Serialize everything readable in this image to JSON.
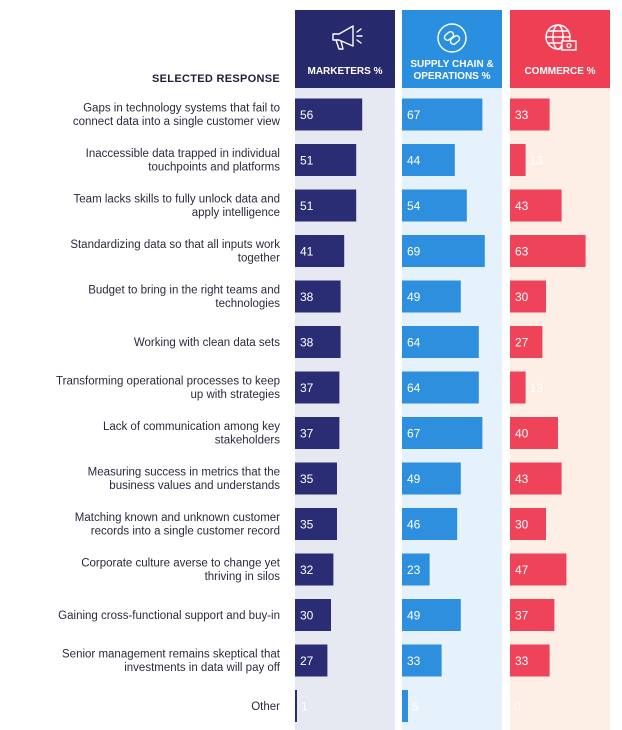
{
  "chart_data": {
    "type": "bar",
    "title": "",
    "xlabel": "",
    "ylabel": "",
    "categories_header": "SELECTED RESPONSE",
    "categories": [
      [
        "Gaps in technology systems that fail to",
        "connect data into a single customer view"
      ],
      [
        "Inaccessible data trapped in individual",
        "touchpoints and platforms"
      ],
      [
        "Team lacks skills to fully unlock data and",
        "apply intelligence"
      ],
      [
        "Standardizing data so that all inputs work",
        "together"
      ],
      [
        "Budget to bring in the right teams and",
        "technologies"
      ],
      [
        "Working with clean data sets"
      ],
      [
        "Transforming operational processes to keep",
        "up with strategies"
      ],
      [
        "Lack of communication among key",
        "stakeholders"
      ],
      [
        "Measuring success in metrics that the",
        "business values and understands"
      ],
      [
        "Matching known and unknown customer",
        "records into a single customer record"
      ],
      [
        "Corporate culture averse to change yet",
        "thriving in silos"
      ],
      [
        "Gaining cross-functional support and buy-in"
      ],
      [
        "Senior management remains skeptical that",
        "investments in data will pay off"
      ],
      [
        "Other"
      ]
    ],
    "xlim": [
      0,
      100
    ],
    "series": [
      {
        "name": [
          "MARKETERS %"
        ],
        "icon": "megaphone-icon",
        "header_color": "#27296d",
        "bar_color": "#2b2d74",
        "panel_color": "#e6e8f2",
        "values": [
          56,
          51,
          51,
          41,
          38,
          38,
          37,
          37,
          35,
          35,
          32,
          30,
          27,
          1
        ]
      },
      {
        "name": [
          "SUPPLY CHAIN &",
          "OPERATIONS %"
        ],
        "icon": "linked-chain-icon",
        "header_color": "#2b8fe0",
        "bar_color": "#2e8fde",
        "panel_color": "#e6f2fb",
        "values": [
          67,
          44,
          54,
          69,
          49,
          64,
          64,
          67,
          49,
          46,
          23,
          49,
          33,
          5
        ]
      },
      {
        "name": [
          "COMMERCE %"
        ],
        "icon": "globe-money-icon",
        "header_color": "#ef3f55",
        "bar_color": "#ee4358",
        "panel_color": "#fdeee6",
        "values": [
          33,
          13,
          43,
          63,
          30,
          27,
          13,
          40,
          43,
          30,
          47,
          37,
          33,
          0
        ]
      }
    ]
  }
}
